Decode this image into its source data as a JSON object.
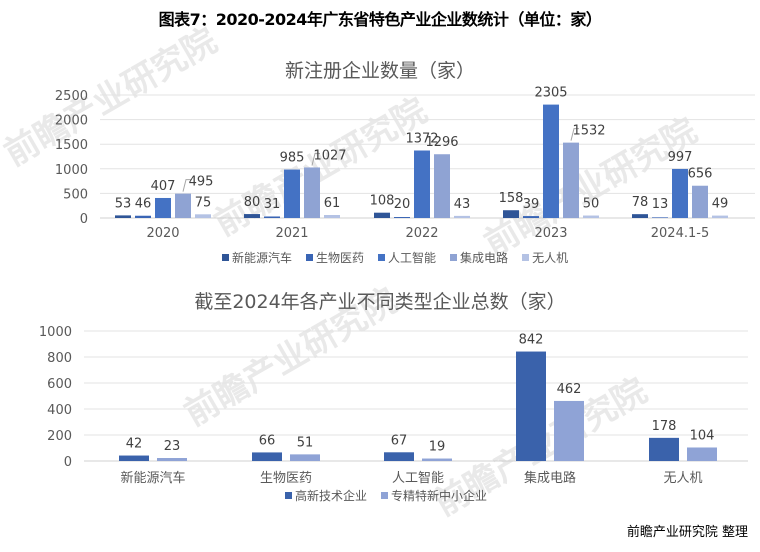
{
  "title": "图表7：2020-2024年广东省特色产业企业数统计（单位：家）",
  "source": "前瞻产业研究院 整理",
  "watermark": "前瞻产业研究院",
  "chart_data": [
    {
      "type": "bar",
      "title": "新注册企业数量（家）",
      "categories": [
        "2020",
        "2021",
        "2022",
        "2023",
        "2024.1-5"
      ],
      "series": [
        {
          "name": "新能源汽车",
          "color": "#2f5597",
          "values": [
            53,
            80,
            108,
            158,
            78
          ]
        },
        {
          "name": "生物医药",
          "color": "#3a65b5",
          "values": [
            46,
            31,
            20,
            39,
            13
          ]
        },
        {
          "name": "人工智能",
          "color": "#4472c4",
          "values": [
            407,
            985,
            1372,
            2305,
            997
          ]
        },
        {
          "name": "集成电路",
          "color": "#8fa3d3",
          "values": [
            495,
            1027,
            1296,
            1532,
            656
          ]
        },
        {
          "name": "无人机",
          "color": "#b4c2e4",
          "values": [
            75,
            61,
            43,
            50,
            49
          ]
        }
      ],
      "yticks": [
        0,
        500,
        1000,
        1500,
        2000,
        2500
      ],
      "ylim": [
        0,
        2500
      ],
      "xlabel": "",
      "ylabel": "",
      "grid": true,
      "legend_position": "bottom"
    },
    {
      "type": "bar",
      "title": "截至2024年各产业不同类型企业总数（家）",
      "categories": [
        "新能源汽车",
        "生物医药",
        "人工智能",
        "集成电路",
        "无人机"
      ],
      "series": [
        {
          "name": "高新技术企业",
          "color": "#3a62ab",
          "values": [
            42,
            66,
            67,
            842,
            178
          ]
        },
        {
          "name": "专精特新中小企业",
          "color": "#8fa3d6",
          "values": [
            23,
            51,
            19,
            462,
            104
          ]
        }
      ],
      "yticks": [
        0,
        200,
        400,
        600,
        800,
        1000
      ],
      "ylim": [
        0,
        1000
      ],
      "xlabel": "",
      "ylabel": "",
      "grid": true,
      "legend_position": "bottom"
    }
  ]
}
